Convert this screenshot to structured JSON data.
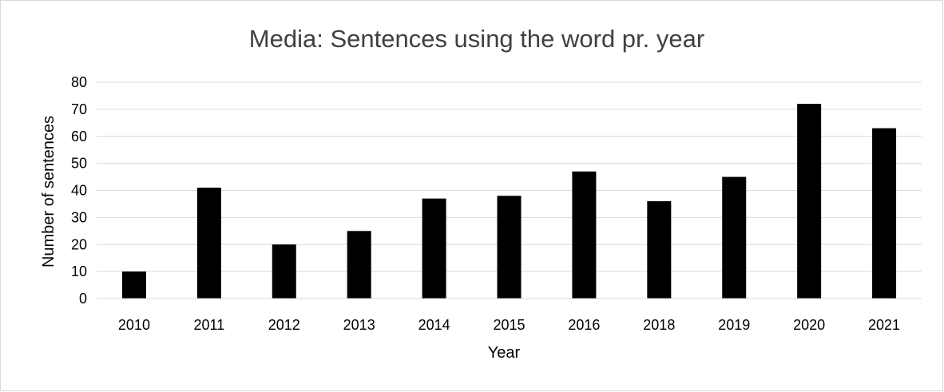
{
  "chart_data": {
    "type": "bar",
    "title": "Media: Sentences using the word pr. year",
    "xlabel": "Year",
    "ylabel": "Number of sentences",
    "categories": [
      "2010",
      "2011",
      "2012",
      "2013",
      "2014",
      "2015",
      "2016",
      "2018",
      "2019",
      "2020",
      "2021"
    ],
    "values": [
      10,
      41,
      20,
      25,
      37,
      38,
      47,
      36,
      45,
      72,
      63
    ],
    "ylim": [
      0,
      80
    ],
    "yticks": [
      "0",
      "10",
      "20",
      "30",
      "40",
      "50",
      "60",
      "70",
      "80"
    ],
    "grid": true,
    "legend": "none",
    "colors": {
      "bar": "#000000",
      "grid": "#d9d9d9",
      "axis": "#d9d9d9",
      "title": "#404040"
    }
  }
}
